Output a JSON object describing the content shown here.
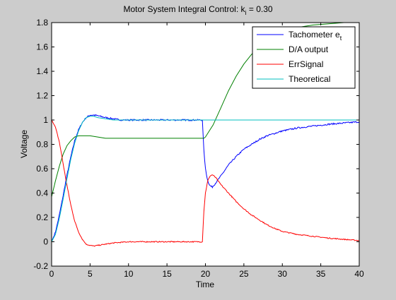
{
  "chart_data": {
    "type": "line",
    "title_main": "Motor System Integral Control: k",
    "title_sub": "i",
    "title_tail": " = 0.30",
    "xlabel": "Time",
    "ylabel": "Voltage",
    "xlim": [
      0,
      40
    ],
    "ylim": [
      -0.2,
      1.8
    ],
    "xticks": [
      0,
      5,
      10,
      15,
      20,
      25,
      30,
      35,
      40
    ],
    "yticks": [
      -0.2,
      0,
      0.2,
      0.4,
      0.6,
      0.8,
      1,
      1.2,
      1.4,
      1.6,
      1.8
    ],
    "xtick_labels": [
      "0",
      "5",
      "10",
      "15",
      "20",
      "25",
      "30",
      "35",
      "40"
    ],
    "ytick_labels": [
      "-0.2",
      "0",
      "0.2",
      "0.4",
      "0.6",
      "0.8",
      "1",
      "1.2",
      "1.4",
      "1.6",
      "1.8"
    ],
    "grid": false,
    "legend_position": "top-right",
    "legend": [
      {
        "text": "Tachometer e",
        "sub": "t",
        "color": "#0000ff"
      },
      {
        "text": "D/A output",
        "sub": "",
        "color": "#008000"
      },
      {
        "text": "ErrSignal",
        "sub": "",
        "color": "#ff0000"
      },
      {
        "text": "Theoretical",
        "sub": "",
        "color": "#00bfbf"
      }
    ],
    "series": [
      {
        "color": "#0000ff",
        "noise": 0.006,
        "points": [
          [
            0,
            0
          ],
          [
            0.5,
            0.08
          ],
          [
            1,
            0.22
          ],
          [
            1.5,
            0.38
          ],
          [
            2,
            0.55
          ],
          [
            2.5,
            0.7
          ],
          [
            3,
            0.83
          ],
          [
            3.5,
            0.92
          ],
          [
            4,
            0.98
          ],
          [
            4.5,
            1.02
          ],
          [
            5,
            1.04
          ],
          [
            5.5,
            1.04
          ],
          [
            6,
            1.035
          ],
          [
            7,
            1.02
          ],
          [
            8,
            1.01
          ],
          [
            9,
            1.0
          ],
          [
            10,
            1.0
          ],
          [
            12,
            1.0
          ],
          [
            14,
            1.0
          ],
          [
            16,
            1.0
          ],
          [
            18,
            1.0
          ],
          [
            19.6,
            1.0
          ],
          [
            19.8,
            0.75
          ],
          [
            20,
            0.6
          ],
          [
            20.3,
            0.5
          ],
          [
            20.6,
            0.46
          ],
          [
            20.9,
            0.45
          ],
          [
            21.3,
            0.48
          ],
          [
            22,
            0.54
          ],
          [
            23,
            0.63
          ],
          [
            24,
            0.7
          ],
          [
            25,
            0.76
          ],
          [
            26,
            0.8
          ],
          [
            27,
            0.84
          ],
          [
            28,
            0.87
          ],
          [
            29,
            0.89
          ],
          [
            30,
            0.91
          ],
          [
            32,
            0.935
          ],
          [
            34,
            0.95
          ],
          [
            36,
            0.965
          ],
          [
            38,
            0.975
          ],
          [
            40,
            0.985
          ]
        ]
      },
      {
        "color": "#008000",
        "noise": 0,
        "points": [
          [
            0,
            0.37
          ],
          [
            0.5,
            0.5
          ],
          [
            1,
            0.62
          ],
          [
            1.5,
            0.72
          ],
          [
            2,
            0.79
          ],
          [
            2.5,
            0.83
          ],
          [
            3,
            0.86
          ],
          [
            3.5,
            0.87
          ],
          [
            4,
            0.87
          ],
          [
            5,
            0.87
          ],
          [
            6,
            0.86
          ],
          [
            7,
            0.85
          ],
          [
            8,
            0.85
          ],
          [
            10,
            0.85
          ],
          [
            12,
            0.85
          ],
          [
            14,
            0.85
          ],
          [
            16,
            0.85
          ],
          [
            18,
            0.85
          ],
          [
            19.8,
            0.85
          ],
          [
            20,
            0.86
          ],
          [
            21,
            0.96
          ],
          [
            22,
            1.1
          ],
          [
            23,
            1.24
          ],
          [
            24,
            1.36
          ],
          [
            25,
            1.46
          ],
          [
            26,
            1.54
          ],
          [
            27,
            1.6
          ],
          [
            28,
            1.65
          ],
          [
            29,
            1.69
          ],
          [
            30,
            1.72
          ],
          [
            32,
            1.76
          ],
          [
            34,
            1.78
          ],
          [
            36,
            1.79
          ],
          [
            38,
            1.8
          ],
          [
            40,
            1.8
          ]
        ]
      },
      {
        "color": "#ff0000",
        "noise": 0.004,
        "points": [
          [
            0,
            1.0
          ],
          [
            0.5,
            0.94
          ],
          [
            1,
            0.82
          ],
          [
            1.5,
            0.64
          ],
          [
            2,
            0.46
          ],
          [
            2.5,
            0.3
          ],
          [
            3,
            0.17
          ],
          [
            3.5,
            0.08
          ],
          [
            4,
            0.02
          ],
          [
            4.5,
            -0.02
          ],
          [
            5,
            -0.03
          ],
          [
            5.5,
            -0.035
          ],
          [
            6,
            -0.03
          ],
          [
            7,
            -0.02
          ],
          [
            8,
            -0.01
          ],
          [
            9,
            -0.005
          ],
          [
            10,
            0.0
          ],
          [
            12,
            0.0
          ],
          [
            14,
            0.0
          ],
          [
            16,
            0.0
          ],
          [
            18,
            0.0
          ],
          [
            19.6,
            0.0
          ],
          [
            19.8,
            0.25
          ],
          [
            20,
            0.4
          ],
          [
            20.3,
            0.5
          ],
          [
            20.6,
            0.54
          ],
          [
            20.9,
            0.55
          ],
          [
            21.3,
            0.53
          ],
          [
            22,
            0.47
          ],
          [
            23,
            0.4
          ],
          [
            24,
            0.33
          ],
          [
            25,
            0.27
          ],
          [
            26,
            0.22
          ],
          [
            27,
            0.18
          ],
          [
            28,
            0.14
          ],
          [
            29,
            0.11
          ],
          [
            30,
            0.085
          ],
          [
            32,
            0.06
          ],
          [
            34,
            0.045
          ],
          [
            36,
            0.03
          ],
          [
            38,
            0.02
          ],
          [
            40,
            0.01
          ]
        ]
      },
      {
        "color": "#00bfbf",
        "noise": 0,
        "points": [
          [
            0,
            0.0
          ],
          [
            0.5,
            0.06
          ],
          [
            1,
            0.19
          ],
          [
            1.5,
            0.35
          ],
          [
            2,
            0.52
          ],
          [
            2.5,
            0.68
          ],
          [
            3,
            0.81
          ],
          [
            3.5,
            0.91
          ],
          [
            4,
            0.98
          ],
          [
            4.5,
            1.02
          ],
          [
            5,
            1.03
          ],
          [
            5.5,
            1.03
          ],
          [
            6,
            1.02
          ],
          [
            7,
            1.01
          ],
          [
            8,
            1.0
          ],
          [
            10,
            1.0
          ],
          [
            15,
            1.0
          ],
          [
            20,
            1.0
          ],
          [
            25,
            1.0
          ],
          [
            30,
            1.0
          ],
          [
            35,
            1.0
          ],
          [
            40,
            1.0
          ]
        ]
      }
    ]
  }
}
